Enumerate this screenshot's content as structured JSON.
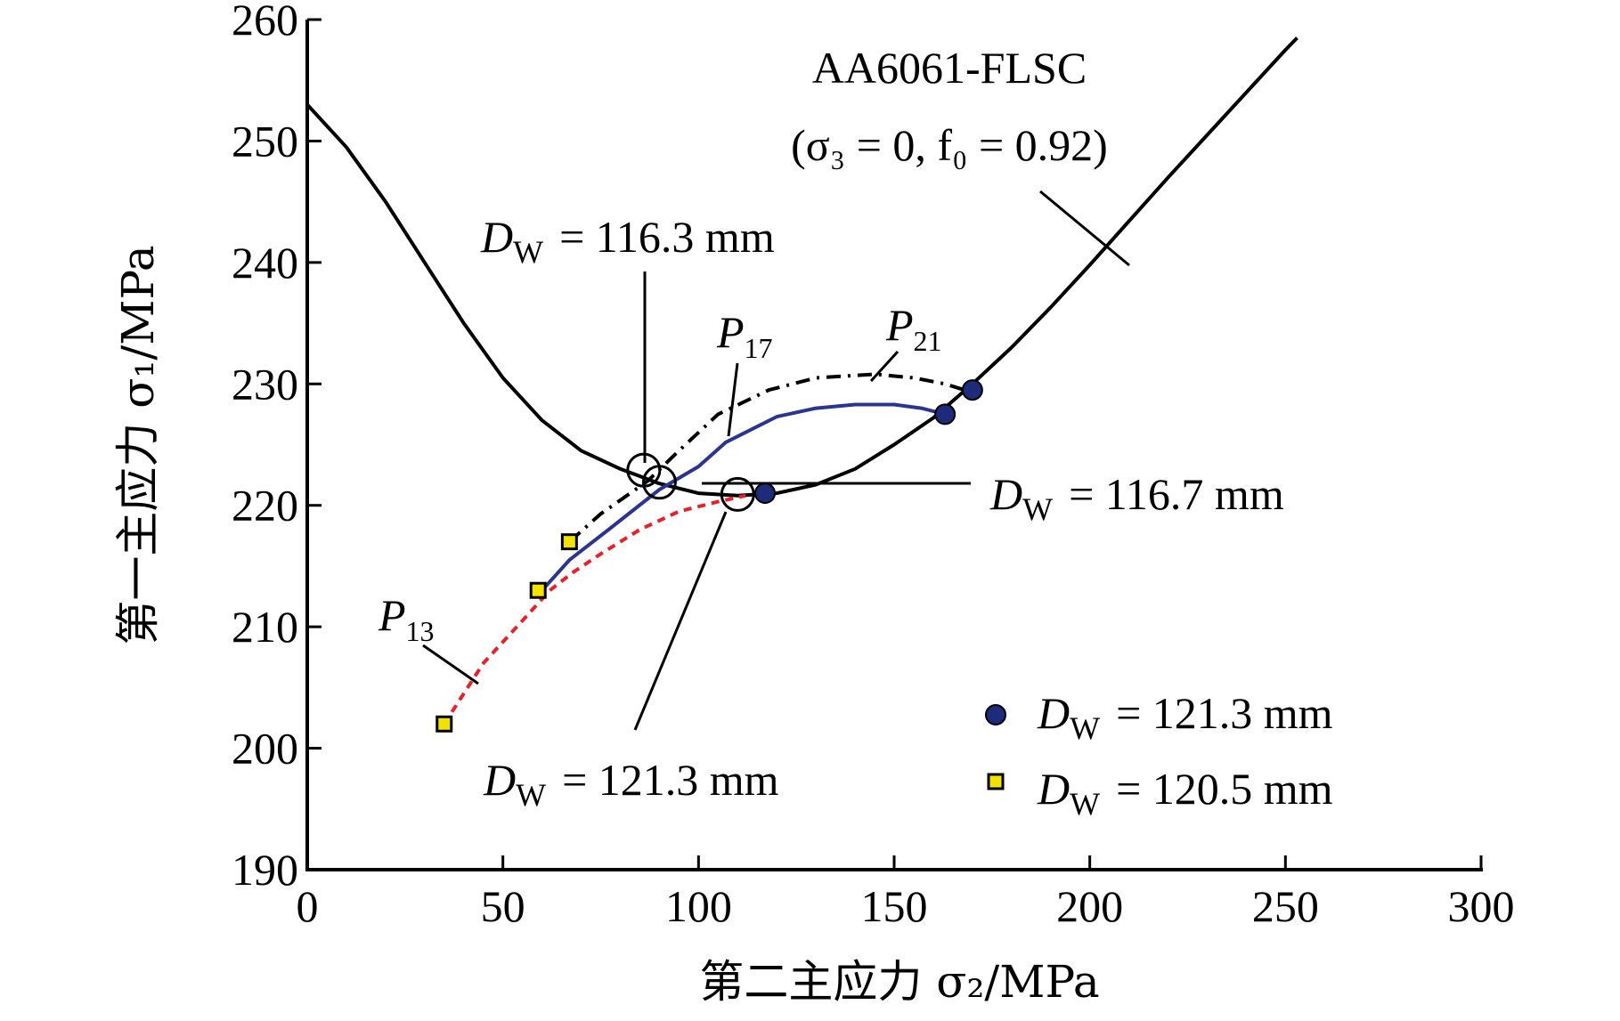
{
  "chart_data": {
    "type": "line",
    "title": "AA6061-FLSC",
    "subtitle": "(σ₃ = 0, f₀ = 0.92)",
    "xlabel": "第二主应力 σ₂/MPa",
    "ylabel": "第一主应力 σ₁/MPa",
    "xlim": [
      0,
      300
    ],
    "ylim": [
      190,
      260
    ],
    "xticks": [
      "0",
      "50",
      "100",
      "150",
      "200",
      "250",
      "300"
    ],
    "yticks": [
      "190",
      "200",
      "210",
      "220",
      "230",
      "240",
      "250",
      "260"
    ],
    "grid": false,
    "legend_position": "bottom-right",
    "flsc_curve": {
      "color": "#000000",
      "x": [
        0,
        10,
        20,
        30,
        40,
        50,
        60,
        70,
        80,
        90,
        100,
        110,
        120,
        130,
        140,
        150,
        160,
        170,
        180,
        190,
        200,
        210,
        220,
        230,
        240,
        250,
        253
      ],
      "y": [
        253.0,
        249.5,
        245.0,
        240.0,
        235.0,
        230.5,
        227.0,
        224.5,
        223.0,
        221.8,
        221.0,
        220.8,
        221.0,
        221.7,
        223.0,
        225.0,
        227.2,
        230.0,
        233.0,
        236.3,
        239.8,
        243.4,
        247.0,
        250.5,
        254.0,
        257.5,
        258.5
      ]
    },
    "series": [
      {
        "name": "P13",
        "style": "dashed",
        "color": "#e8202a",
        "x": [
          35,
          45,
          55,
          62,
          68,
          75,
          85,
          95,
          105,
          112
        ],
        "y": [
          202,
          207,
          210.5,
          213,
          214.5,
          216,
          218,
          219.5,
          220.3,
          220.8
        ]
      },
      {
        "name": "P17",
        "style": "solid",
        "color": "#2b3591",
        "x": [
          60,
          67,
          77,
          90,
          100,
          107,
          120,
          130,
          140,
          150,
          157,
          163
        ],
        "y": [
          213,
          215.5,
          218,
          221.3,
          223.2,
          225.2,
          227.3,
          228,
          228.3,
          228.3,
          228,
          227.5
        ]
      },
      {
        "name": "P21",
        "style": "dash-dot",
        "color": "#000000",
        "x": [
          67,
          75,
          87,
          95,
          105,
          118,
          130,
          145,
          155,
          163,
          168
        ],
        "y": [
          217,
          219.3,
          222,
          224.5,
          227.5,
          229.5,
          230.5,
          230.8,
          230.5,
          230,
          229.5
        ]
      }
    ],
    "markers": [
      {
        "series": "Dw = 121.3 mm",
        "shape": "circle",
        "color": "#1e2a7a",
        "points": [
          {
            "x": 117,
            "y": 221
          },
          {
            "x": 163,
            "y": 227.5
          },
          {
            "x": 170,
            "y": 229.5
          }
        ]
      },
      {
        "series": "Dw = 120.5 mm",
        "shape": "square",
        "color": "#f2e200",
        "points": [
          {
            "x": 35,
            "y": 202
          },
          {
            "x": 59,
            "y": 213
          },
          {
            "x": 67,
            "y": 217
          }
        ]
      }
    ],
    "open_circles": [
      {
        "x": 86,
        "y": 222.9
      },
      {
        "x": 90,
        "y": 221.9
      },
      {
        "x": 110,
        "y": 220.9
      }
    ],
    "annotations": {
      "dw_1163": {
        "prefix": "D",
        "sub": "W",
        "text": "= 116.3 mm"
      },
      "dw_1167": {
        "prefix": "D",
        "sub": "W",
        "text": "= 116.7 mm"
      },
      "dw_1213": {
        "prefix": "D",
        "sub": "W",
        "text": "= 121.3 mm"
      },
      "p13": {
        "prefix": "P",
        "sub": "13"
      },
      "p17": {
        "prefix": "P",
        "sub": "17"
      },
      "p21": {
        "prefix": "P",
        "sub": "21"
      }
    },
    "legend": [
      {
        "shape": "circle",
        "color": "#1e2a7a",
        "prefix": "D",
        "sub": "W",
        "text": "= 121.3 mm"
      },
      {
        "shape": "square",
        "color": "#f2e200",
        "prefix": "D",
        "sub": "W",
        "text": "= 120.5 mm"
      }
    ]
  }
}
